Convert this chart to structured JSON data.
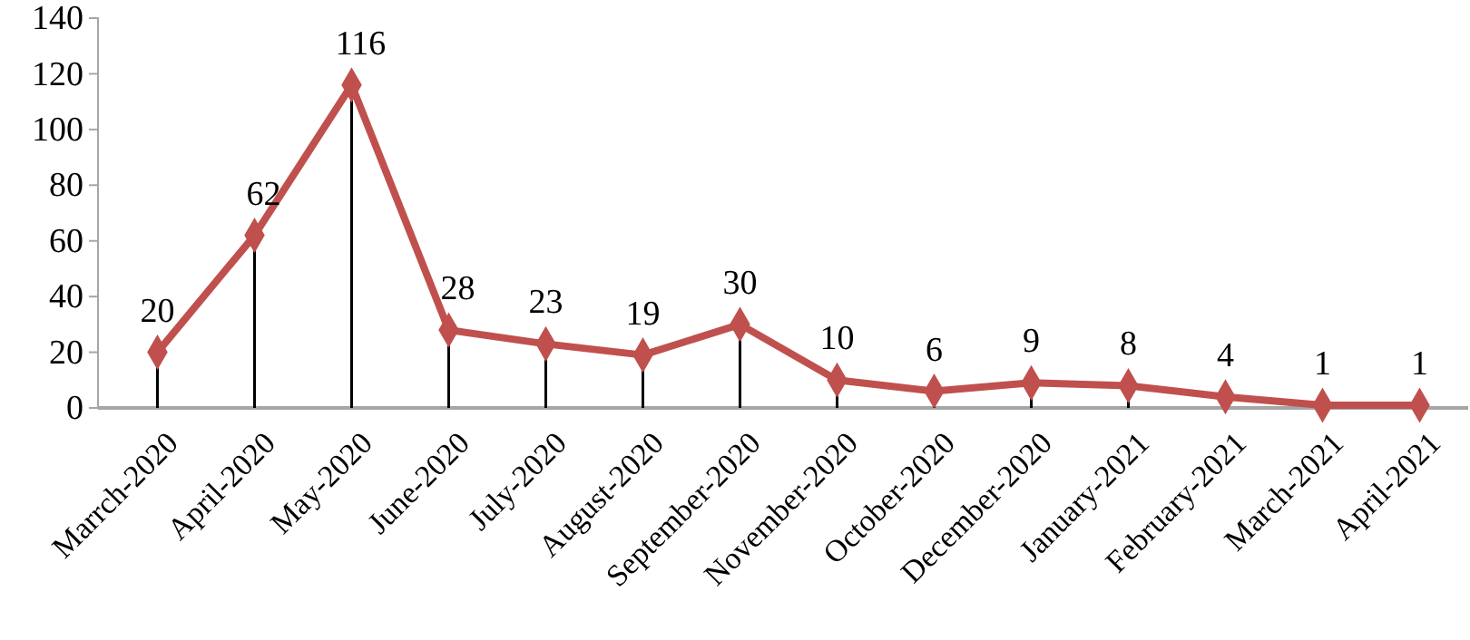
{
  "chart_data": {
    "type": "line",
    "categories": [
      "Marrch-2020",
      "April-2020",
      "May-2020",
      "June-2020",
      "July-2020",
      "August-2020",
      "September-2020",
      "November-2020",
      "October-2020",
      "December-2020",
      "January-2021",
      "February-2021",
      "March-2021",
      "April-2021"
    ],
    "series": [
      {
        "color": "#c0504d",
        "values": [
          20,
          62,
          116,
          28,
          23,
          19,
          30,
          10,
          6,
          9,
          8,
          4,
          1,
          1
        ]
      }
    ],
    "ylim": [
      0,
      140
    ],
    "yticks": [
      0,
      20,
      40,
      60,
      80,
      100,
      120,
      140
    ],
    "data_labels": true,
    "marker": "diamond",
    "line_style": "solid"
  }
}
